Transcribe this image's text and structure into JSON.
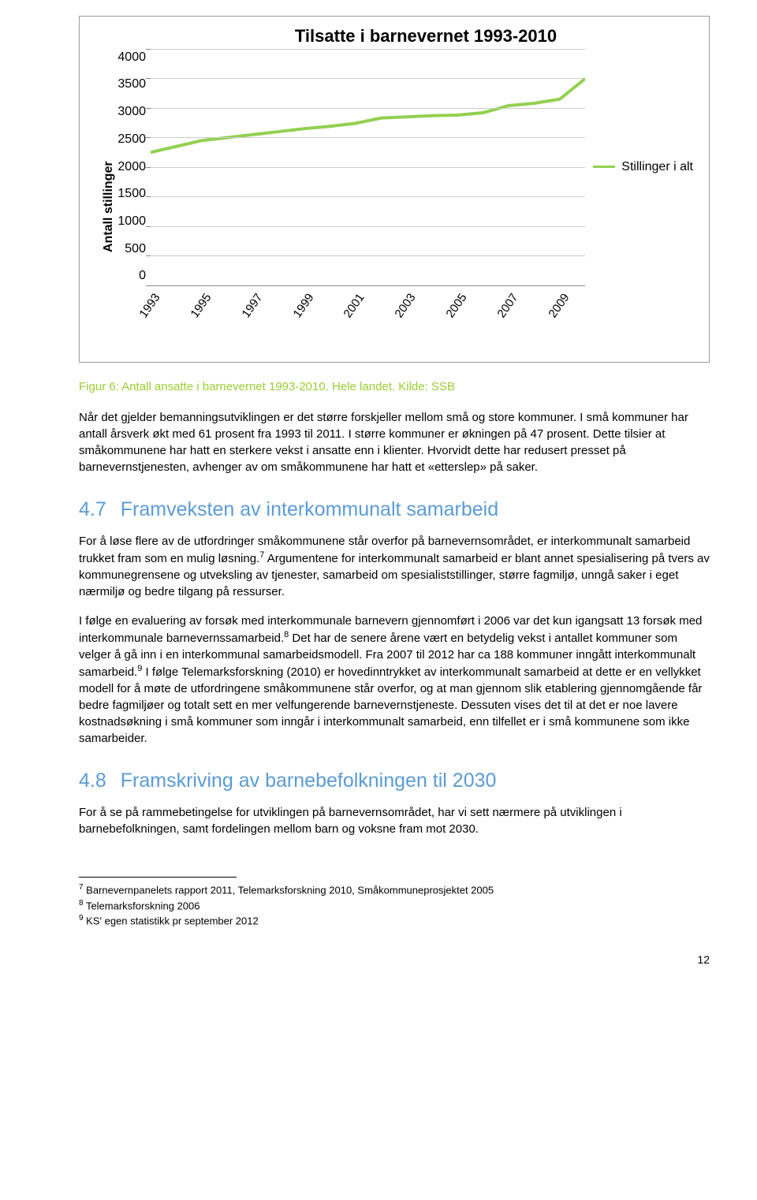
{
  "chart": {
    "type": "line",
    "title": "Tilsatte i barnevernet 1993-2010",
    "ylabel": "Antall stillinger",
    "ylim": [
      0,
      4000
    ],
    "ytick_step": 500,
    "yticks": [
      "4000",
      "3500",
      "3000",
      "2500",
      "2000",
      "1500",
      "1000",
      "500",
      "0"
    ],
    "xticks": [
      "1993",
      "1995",
      "1997",
      "1999",
      "2001",
      "2003",
      "2005",
      "2007",
      "2009"
    ],
    "series_name": "Stillinger i alt",
    "line_color": "#92d050",
    "line_width": 4,
    "grid_color": "#cccccc",
    "axis_color": "#888888",
    "background_color": "#ffffff",
    "values": [
      2250,
      2350,
      2450,
      2500,
      2550,
      2600,
      2650,
      2690,
      2740,
      2830,
      2850,
      2870,
      2880,
      2920,
      3040,
      3080,
      3150,
      3500
    ]
  },
  "caption": "Figur 6: Antall ansatte i barnevernet 1993-2010. Hele landet. Kilde: SSB",
  "para1": "Når det gjelder bemanningsutviklingen er det større forskjeller mellom små og store kommuner. I små kommuner har antall årsverk økt med 61 prosent fra 1993 til 2011. I større kommuner er økningen på 47 prosent. Dette tilsier at småkommunene har hatt en sterkere vekst i ansatte enn i klienter. Hvorvidt dette har redusert presset på barnevernstjenesten, avhenger av om småkommunene har hatt et «etterslep» på saker.",
  "section47": {
    "num": "4.7",
    "title": "Framveksten av interkommunalt samarbeid"
  },
  "para2a": "For å løse flere av de utfordringer småkommunene står overfor på barnevernsområdet, er interkommunalt samarbeid trukket fram som en mulig løsning.",
  "para2b": " Argumentene for interkommunalt samarbeid er blant annet spesialisering på tvers av kommunegrensene og utveksling av tjenester, samarbeid om spesialiststillinger, større fagmiljø, unngå saker i eget nærmiljø og bedre tilgang på ressurser.",
  "para3a": "I følge en evaluering av forsøk med interkommunale barnevern gjennomført i 2006 var det kun igangsatt 13 forsøk med interkommunale barnevernssamarbeid.",
  "para3b": " Det har de senere årene vært en betydelig vekst i antallet kommuner som velger å gå inn i en interkommunal samarbeidsmodell.  Fra 2007 til 2012 har ca 188 kommuner inngått interkommunalt samarbeid.",
  "para3c": " I følge Telemarksforskning (2010) er hovedinntrykket av interkommunalt samarbeid at dette er en vellykket modell for å møte de utfordringene småkommunene står overfor, og at man gjennom slik etablering gjennomgående får bedre fagmiljøer og totalt sett en mer velfungerende barnevernstjeneste.  Dessuten vises det til at det er noe lavere kostnadsøkning i små kommuner som inngår i interkommunalt samarbeid, enn tilfellet er i små kommunene som ikke samarbeider.",
  "section48": {
    "num": "4.8",
    "title": "Framskriving av barnebefolkningen til 2030"
  },
  "para4": "For å se på rammebetingelse for utviklingen på barnevernsområdet, har vi sett nærmere på utviklingen i barnebefolkningen, samt fordelingen mellom barn og voksne fram mot 2030.",
  "fn7": {
    "num": "7",
    "text": " Barnevernpanelets rapport 2011, Telemarksforskning 2010, Småkommuneprosjektet 2005"
  },
  "fn8": {
    "num": "8",
    "text": " Telemarksforskning 2006"
  },
  "fn9": {
    "num": "9",
    "text": " KS' egen statistikk pr september 2012"
  },
  "sup7": "7",
  "sup8": "8",
  "sup9": "9",
  "pagenum": "12",
  "heading_color": "#5b9bd5",
  "caption_color": "#9acd32"
}
